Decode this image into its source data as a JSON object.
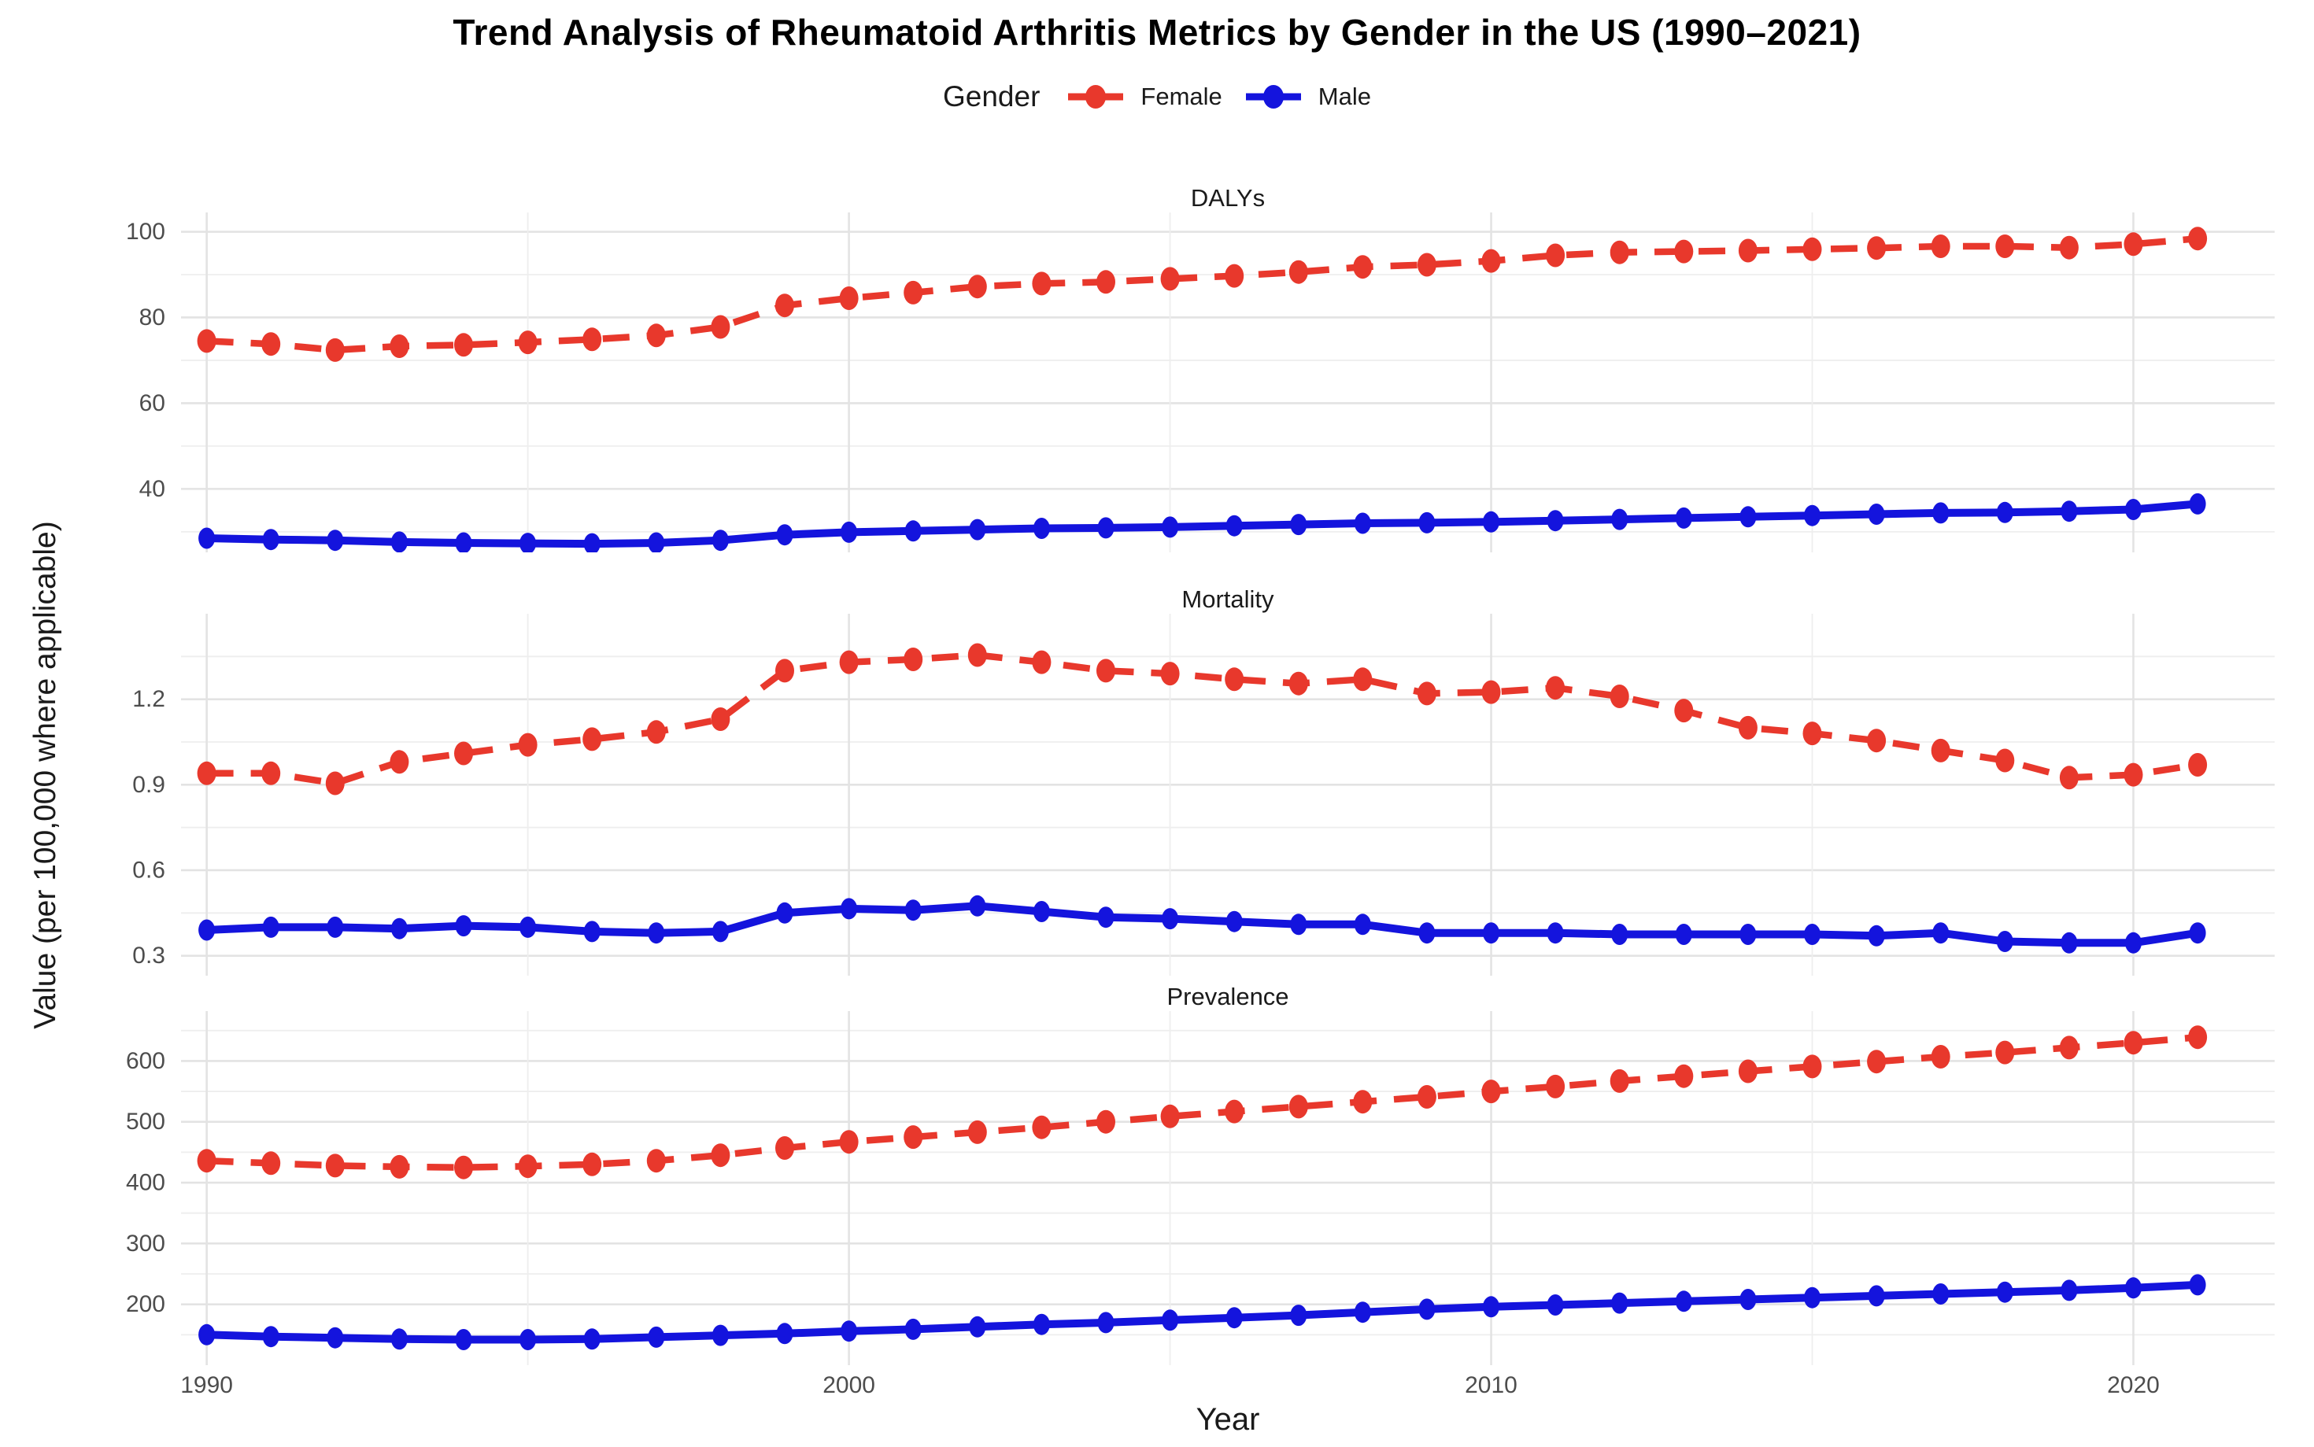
{
  "title": "Trend Analysis of Rheumatoid Arthritis Metrics by Gender in the US (1990–2021)",
  "legend": {
    "title": "Gender",
    "items": [
      {
        "label": "Female",
        "color": "#e8382c"
      },
      {
        "label": "Male",
        "color": "#1414dd"
      }
    ]
  },
  "axes": {
    "x_label": "Year",
    "y_label": "Value (per 100,000 where applicable)",
    "x_ticks": [
      1990,
      2000,
      2010,
      2020
    ],
    "x_minor": [
      1995,
      2005,
      2015
    ]
  },
  "colors": {
    "female": "#e8382c",
    "male": "#1414dd",
    "grid_major": "#e3e3e3",
    "grid_minor": "#eeeeee",
    "tick_text": "#4d4d4d",
    "background": "#ffffff"
  },
  "chart_data": [
    {
      "type": "line",
      "title": "DALYs",
      "x": [
        1990,
        1991,
        1992,
        1993,
        1994,
        1995,
        1996,
        1997,
        1998,
        1999,
        2000,
        2001,
        2002,
        2003,
        2004,
        2005,
        2006,
        2007,
        2008,
        2009,
        2010,
        2011,
        2012,
        2013,
        2014,
        2015,
        2016,
        2017,
        2018,
        2019,
        2020,
        2021
      ],
      "ylim": [
        25.2,
        104.5
      ],
      "yticks": [
        40,
        60,
        80,
        100
      ],
      "gridlines": [
        30,
        40,
        50,
        60,
        70,
        80,
        90,
        100
      ],
      "series": [
        {
          "name": "Female",
          "dashed": true,
          "values": [
            74.5,
            73.8,
            72.4,
            73.3,
            73.6,
            74.2,
            74.9,
            75.8,
            77.8,
            82.8,
            84.5,
            85.8,
            87.2,
            87.9,
            88.3,
            89.0,
            89.7,
            90.6,
            91.8,
            92.3,
            93.2,
            94.5,
            95.2,
            95.4,
            95.6,
            95.9,
            96.2,
            96.6,
            96.6,
            96.3,
            97.1,
            98.4
          ]
        },
        {
          "name": "Male",
          "dashed": false,
          "values": [
            28.5,
            28.2,
            28.0,
            27.6,
            27.4,
            27.3,
            27.2,
            27.4,
            28.0,
            29.3,
            29.9,
            30.2,
            30.5,
            30.8,
            30.9,
            31.1,
            31.4,
            31.7,
            32.0,
            32.1,
            32.3,
            32.6,
            32.9,
            33.2,
            33.5,
            33.8,
            34.1,
            34.4,
            34.5,
            34.8,
            35.2,
            36.5
          ]
        }
      ]
    },
    {
      "type": "line",
      "title": "Mortality",
      "x": [
        1990,
        1991,
        1992,
        1993,
        1994,
        1995,
        1996,
        1997,
        1998,
        1999,
        2000,
        2001,
        2002,
        2003,
        2004,
        2005,
        2006,
        2007,
        2008,
        2009,
        2010,
        2011,
        2012,
        2013,
        2014,
        2015,
        2016,
        2017,
        2018,
        2019,
        2020,
        2021
      ],
      "ylim": [
        0.23,
        1.5
      ],
      "yticks": [
        0.3,
        0.6,
        0.9,
        1.2
      ],
      "gridlines": [
        0.3,
        0.45,
        0.6,
        0.75,
        0.9,
        1.05,
        1.2,
        1.35
      ],
      "series": [
        {
          "name": "Female",
          "dashed": true,
          "values": [
            0.94,
            0.94,
            0.905,
            0.98,
            1.01,
            1.04,
            1.06,
            1.085,
            1.13,
            1.3,
            1.33,
            1.34,
            1.355,
            1.33,
            1.3,
            1.29,
            1.27,
            1.255,
            1.27,
            1.22,
            1.225,
            1.24,
            1.21,
            1.16,
            1.1,
            1.08,
            1.055,
            1.02,
            0.985,
            0.925,
            0.935,
            0.97
          ]
        },
        {
          "name": "Male",
          "dashed": false,
          "values": [
            0.39,
            0.4,
            0.4,
            0.395,
            0.405,
            0.4,
            0.385,
            0.38,
            0.385,
            0.45,
            0.465,
            0.46,
            0.475,
            0.455,
            0.435,
            0.43,
            0.42,
            0.41,
            0.41,
            0.38,
            0.38,
            0.38,
            0.375,
            0.375,
            0.375,
            0.375,
            0.37,
            0.38,
            0.35,
            0.345,
            0.345,
            0.38
          ]
        }
      ]
    },
    {
      "type": "line",
      "title": "Prevalence",
      "x": [
        1990,
        1991,
        1992,
        1993,
        1994,
        1995,
        1996,
        1997,
        1998,
        1999,
        2000,
        2001,
        2002,
        2003,
        2004,
        2005,
        2006,
        2007,
        2008,
        2009,
        2010,
        2011,
        2012,
        2013,
        2014,
        2015,
        2016,
        2017,
        2018,
        2019,
        2020,
        2021
      ],
      "ylim": [
        100,
        682
      ],
      "yticks": [
        200,
        300,
        400,
        500,
        600
      ],
      "gridlines": [
        150,
        200,
        250,
        300,
        350,
        400,
        450,
        500,
        550,
        600,
        650
      ],
      "series": [
        {
          "name": "Female",
          "dashed": true,
          "values": [
            436,
            432,
            428,
            426,
            425,
            427,
            430,
            436,
            445,
            457,
            467,
            475,
            483,
            491,
            500,
            509,
            517,
            525,
            533,
            541,
            550,
            558,
            567,
            575,
            583,
            591,
            599,
            607,
            614,
            622,
            630,
            639
          ]
        },
        {
          "name": "Male",
          "dashed": false,
          "values": [
            150,
            147,
            145,
            143,
            142,
            142,
            143,
            146,
            149,
            152,
            156,
            159,
            163,
            167,
            170,
            174,
            178,
            182,
            187,
            192,
            196,
            199,
            202,
            205,
            208,
            211,
            214,
            217,
            220,
            223,
            227,
            232
          ]
        }
      ]
    }
  ]
}
